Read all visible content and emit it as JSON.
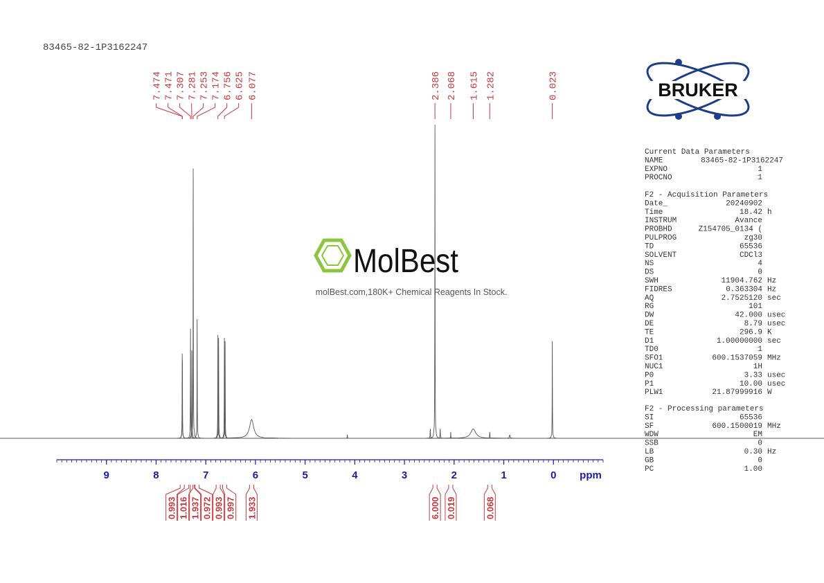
{
  "sample_id": "83465-82-1P3162247",
  "chart_data": {
    "type": "nmr",
    "xlabel": "ppm",
    "xlim": [
      10,
      -1
    ],
    "xticks": [
      9,
      8,
      7,
      6,
      5,
      4,
      3,
      2,
      1,
      0
    ],
    "xminorstep": 0.1,
    "ylim": [
      0,
      100
    ],
    "axis_color": "#1a1aa8",
    "color": "#555555",
    "annotation_color": "#c8383c",
    "spectrum": {
      "x": [
        7.474,
        7.471,
        7.307,
        7.281,
        7.253,
        7.174,
        6.756,
        6.742,
        6.625,
        6.611,
        6.077,
        4.15,
        2.48,
        2.386,
        2.28,
        2.068,
        1.615,
        1.282,
        0.88,
        0.023
      ],
      "values": [
        27,
        25,
        35,
        28,
        86,
        38,
        33,
        32,
        32,
        31,
        6,
        1,
        3,
        100,
        3,
        2,
        3,
        2,
        1,
        31
      ],
      "widths": [
        0.003,
        0.003,
        0.003,
        0.003,
        0.003,
        0.003,
        0.003,
        0.003,
        0.003,
        0.003,
        0.05,
        0.004,
        0.004,
        0.003,
        0.004,
        0.003,
        0.06,
        0.004,
        0.01,
        0.003
      ]
    },
    "peak_labels": [
      7.474,
      7.471,
      7.307,
      7.281,
      7.253,
      7.174,
      6.756,
      6.625,
      6.077,
      2.386,
      2.068,
      1.615,
      1.282,
      0.023
    ],
    "integrals": {
      "x": [
        7.474,
        7.3,
        7.27,
        7.174,
        6.75,
        6.62,
        6.077,
        2.386,
        2.068,
        1.282
      ],
      "values": [
        0.993,
        1.016,
        1.937,
        0.972,
        0.993,
        0.997,
        1.933,
        6,
        0.019,
        0.068
      ],
      "value_labels": [
        "0.993",
        "1.016",
        "1.937",
        "0.972",
        "0.993",
        "0.997",
        "1.933",
        "6.000",
        "0.019",
        "0.068"
      ]
    }
  },
  "watermark": {
    "brand": "MolBest",
    "tagline": "molBest.com,180K+ Chemical Reagents In Stock."
  },
  "logo": "BRUKER",
  "parameters": [
    {
      "title": "Current Data Parameters",
      "rows": [
        {
          "name": "NAME",
          "value": "83465-82-1P3162247"
        },
        {
          "name": "EXPNO",
          "value": "1"
        },
        {
          "name": "PROCNO",
          "value": "1"
        }
      ]
    },
    {
      "title": "F2 - Acquisition Parameters",
      "rows": [
        {
          "name": "Date_",
          "value": "20240902"
        },
        {
          "name": "Time",
          "value": "18.42",
          "unit": "h"
        },
        {
          "name": "INSTRUM",
          "value": "Avance"
        },
        {
          "name": "PROBHD",
          "value": "Z154705_0134 ("
        },
        {
          "name": "PULPROG",
          "value": "zg30"
        },
        {
          "name": "TD",
          "value": "65536"
        },
        {
          "name": "SOLVENT",
          "value": "CDCl3"
        },
        {
          "name": "NS",
          "value": "4"
        },
        {
          "name": "DS",
          "value": "0"
        },
        {
          "name": "SWH",
          "value": "11904.762",
          "unit": "Hz"
        },
        {
          "name": "FIDRES",
          "value": "0.363304",
          "unit": "Hz"
        },
        {
          "name": "AQ",
          "value": "2.7525120",
          "unit": "sec"
        },
        {
          "name": "RG",
          "value": "101"
        },
        {
          "name": "DW",
          "value": "42.000",
          "unit": "usec"
        },
        {
          "name": "DE",
          "value": "8.79",
          "unit": "usec"
        },
        {
          "name": "TE",
          "value": "296.9",
          "unit": "K"
        },
        {
          "name": "D1",
          "value": "1.00000000",
          "unit": "sec"
        },
        {
          "name": "TD0",
          "value": "1"
        },
        {
          "name": "SFO1",
          "value": "600.1537059",
          "unit": "MHz"
        },
        {
          "name": "NUC1",
          "value": "1H"
        },
        {
          "name": "P0",
          "value": "3.33",
          "unit": "usec"
        },
        {
          "name": "P1",
          "value": "10.00",
          "unit": "usec"
        },
        {
          "name": "PLW1",
          "value": "21.87999916",
          "unit": "W"
        }
      ]
    },
    {
      "title": "F2 - Processing parameters",
      "rows": [
        {
          "name": "SI",
          "value": "65536"
        },
        {
          "name": "SF",
          "value": "600.1500019",
          "unit": "MHz"
        },
        {
          "name": "WDW",
          "value": "EM"
        },
        {
          "name": "SSB",
          "value": "0"
        },
        {
          "name": "LB",
          "value": "0.30",
          "unit": "Hz"
        },
        {
          "name": "GB",
          "value": "0"
        },
        {
          "name": "PC",
          "value": "1.00"
        }
      ]
    }
  ]
}
